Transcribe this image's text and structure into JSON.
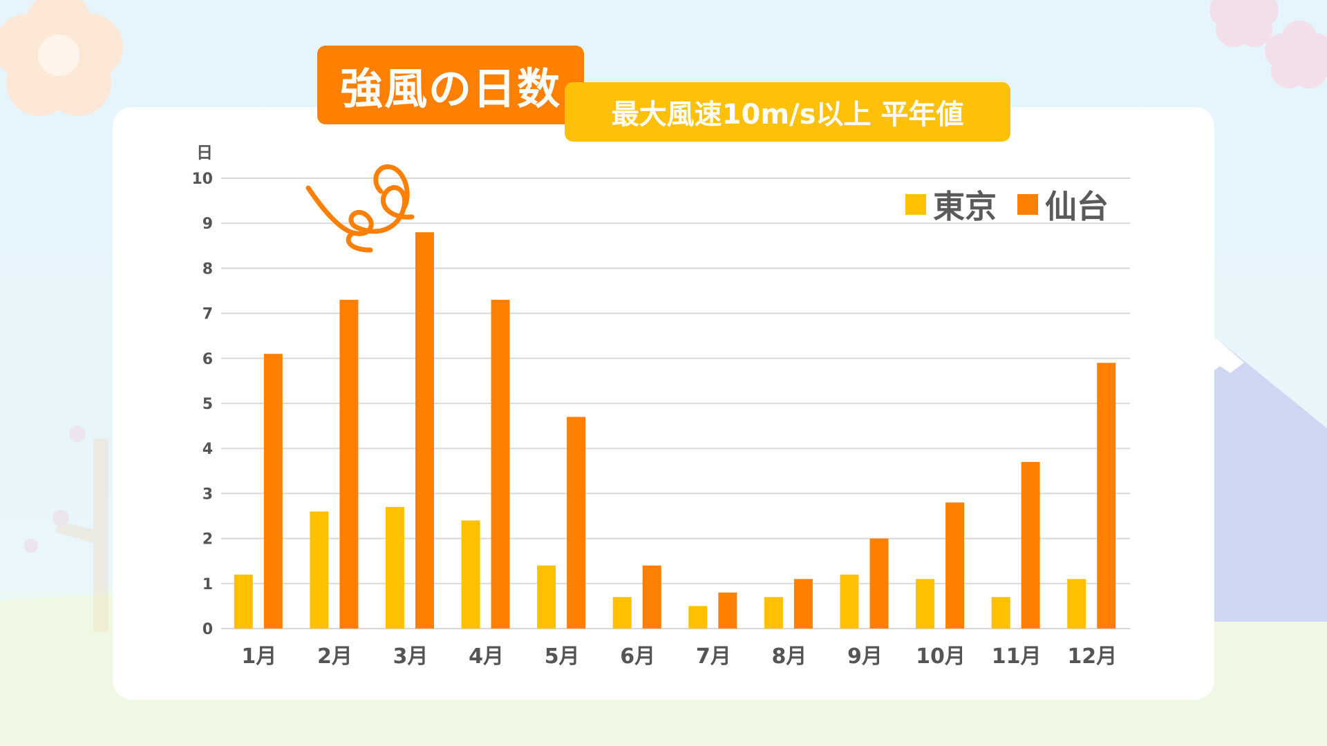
{
  "colors": {
    "tokyo": "#ffc000",
    "sendai": "#ff7f00",
    "title_bg": "#ff7f00",
    "subtitle_bg": "#ffc107",
    "grid": "#d9d9d9",
    "axis_text": "#555555"
  },
  "header": {
    "title": "強風の日数",
    "subtitle": "最大風速10m/s以上 平年値"
  },
  "chart_data": {
    "type": "bar",
    "title": "強風の日数",
    "subtitle": "最大風速10m/s以上 平年値",
    "ylabel": "日",
    "xlabel": "",
    "ylim": [
      0,
      10
    ],
    "yticks": [
      "0",
      "1",
      "2",
      "3",
      "4",
      "5",
      "6",
      "7",
      "8",
      "9",
      "10"
    ],
    "grid": true,
    "legend_position": "top-right",
    "categories": [
      "1月",
      "2月",
      "3月",
      "4月",
      "5月",
      "6月",
      "7月",
      "8月",
      "9月",
      "10月",
      "11月",
      "12月"
    ],
    "series": [
      {
        "name": "東京",
        "values": [
          1.2,
          2.6,
          2.7,
          2.4,
          1.4,
          0.7,
          0.5,
          0.7,
          1.2,
          1.1,
          0.7,
          1.1
        ]
      },
      {
        "name": "仙台",
        "values": [
          6.1,
          7.3,
          8.8,
          7.3,
          4.7,
          1.4,
          0.8,
          1.1,
          2.0,
          2.8,
          3.7,
          5.9
        ]
      }
    ]
  },
  "decorations": {
    "wind_swirl": "wind-swirl-icon",
    "plum_blossom": "plum-blossom-icon",
    "mountain": "mountain-icon"
  }
}
